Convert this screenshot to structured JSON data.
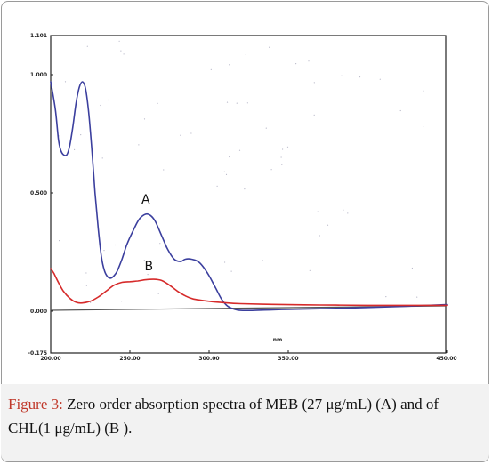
{
  "chart_data": {
    "type": "line",
    "xlabel": "nm",
    "ylabel": "",
    "xlim": [
      200,
      450
    ],
    "ylim": [
      -0.175,
      1.101
    ],
    "x_ticks": [
      "200.00",
      "250.00",
      "300.00",
      "350.00",
      "450.00"
    ],
    "x_tick_values": [
      200,
      250,
      300,
      350,
      450
    ],
    "y_ticks": [
      "1.101",
      "1.000",
      "0.500",
      "0.000",
      "-0.175"
    ],
    "y_tick_values": [
      1.101,
      1.0,
      0.5,
      0.0,
      -0.175
    ],
    "grid": false,
    "series": [
      {
        "name": "A",
        "color": "#3b3f9e",
        "x": [
          200,
          203,
          205,
          207,
          210,
          212,
          214,
          216,
          218,
          220,
          222,
          224,
          226,
          228,
          230,
          232,
          234,
          236,
          238,
          240,
          242,
          245,
          248,
          252,
          256,
          260,
          263,
          266,
          270,
          274,
          278,
          282,
          285,
          289,
          293,
          296,
          300,
          304,
          308,
          312,
          318,
          325,
          335,
          350,
          380,
          420,
          450
        ],
        "values": [
          0.97,
          0.85,
          0.72,
          0.67,
          0.66,
          0.7,
          0.78,
          0.88,
          0.945,
          0.97,
          0.94,
          0.84,
          0.68,
          0.5,
          0.35,
          0.23,
          0.17,
          0.145,
          0.14,
          0.15,
          0.17,
          0.22,
          0.28,
          0.34,
          0.39,
          0.41,
          0.405,
          0.38,
          0.32,
          0.26,
          0.22,
          0.21,
          0.22,
          0.22,
          0.21,
          0.19,
          0.15,
          0.1,
          0.05,
          0.02,
          0.005,
          0.003,
          0.005,
          0.008,
          0.012,
          0.02,
          0.028
        ]
      },
      {
        "name": "B",
        "color": "#d62b2b",
        "x": [
          200,
          202,
          205,
          208,
          212,
          216,
          220,
          225,
          230,
          235,
          240,
          245,
          250,
          255,
          260,
          265,
          270,
          275,
          280,
          285,
          290,
          300,
          310,
          320,
          340,
          360,
          380,
          400,
          420,
          450
        ],
        "values": [
          0.18,
          0.16,
          0.12,
          0.085,
          0.055,
          0.038,
          0.035,
          0.042,
          0.06,
          0.085,
          0.11,
          0.122,
          0.125,
          0.128,
          0.133,
          0.135,
          0.13,
          0.11,
          0.085,
          0.065,
          0.052,
          0.042,
          0.036,
          0.032,
          0.029,
          0.027,
          0.026,
          0.025,
          0.025,
          0.025
        ]
      }
    ]
  },
  "caption": {
    "lead": "Figure 3:",
    "text": " Zero order absorption spectra of MEB (27 μg/mL) (A) and of CHL(1 μg/mL) (B )."
  }
}
